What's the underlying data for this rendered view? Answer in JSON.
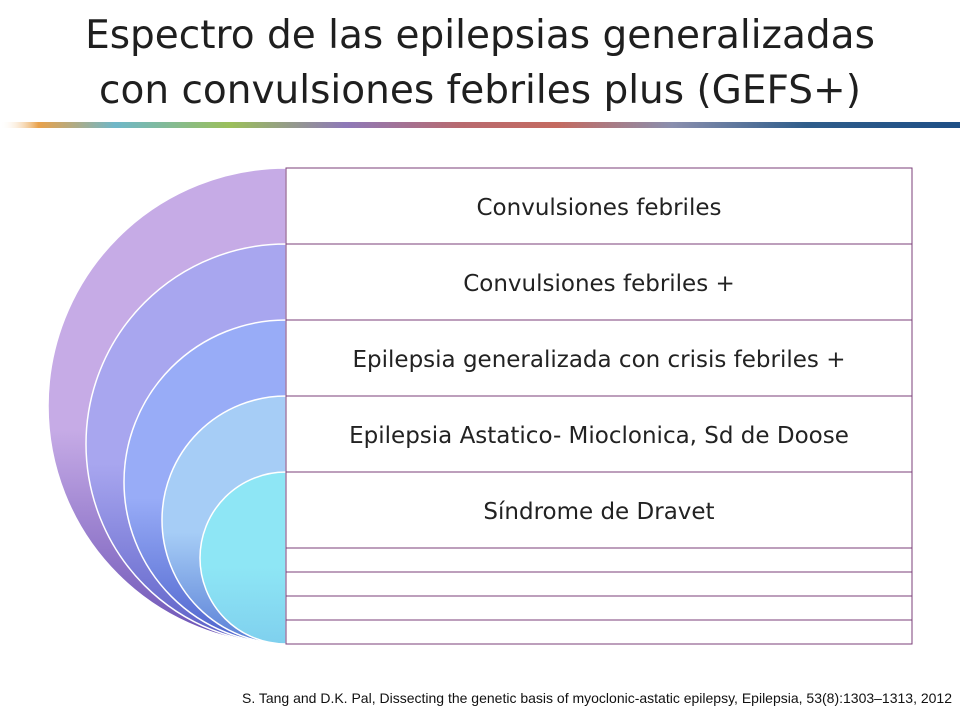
{
  "title": {
    "line1": "Espectro de las epilepsias generalizadas",
    "line2": "con convulsiones febriles plus (GEFS+)"
  },
  "diagram": {
    "rows": [
      "Convulsiones febriles",
      "Convulsiones febriles +",
      "Epilepsia generalizada con crisis febriles +",
      "Epilepsia Astatico- Mioclonica, Sd de Doose",
      "Síndrome de Dravet"
    ],
    "arc_colors": [
      "#c6abe6",
      "#a8a6ef",
      "#98acf7",
      "#a6cdf6",
      "#8ee6f5"
    ],
    "arc_shadow_colors": [
      "#6a52b5",
      "#5b5fc6",
      "#4d63cc",
      "#5a7fd6",
      "#7fd0ee"
    ],
    "border_color": "#7b3f7a",
    "text_color": "#222222"
  },
  "citation": "S. Tang and D.K. Pal, Dissecting the genetic basis of myoclonic-astatic epilepsy, Epilepsia, 53(8):1303–1313, 2012"
}
